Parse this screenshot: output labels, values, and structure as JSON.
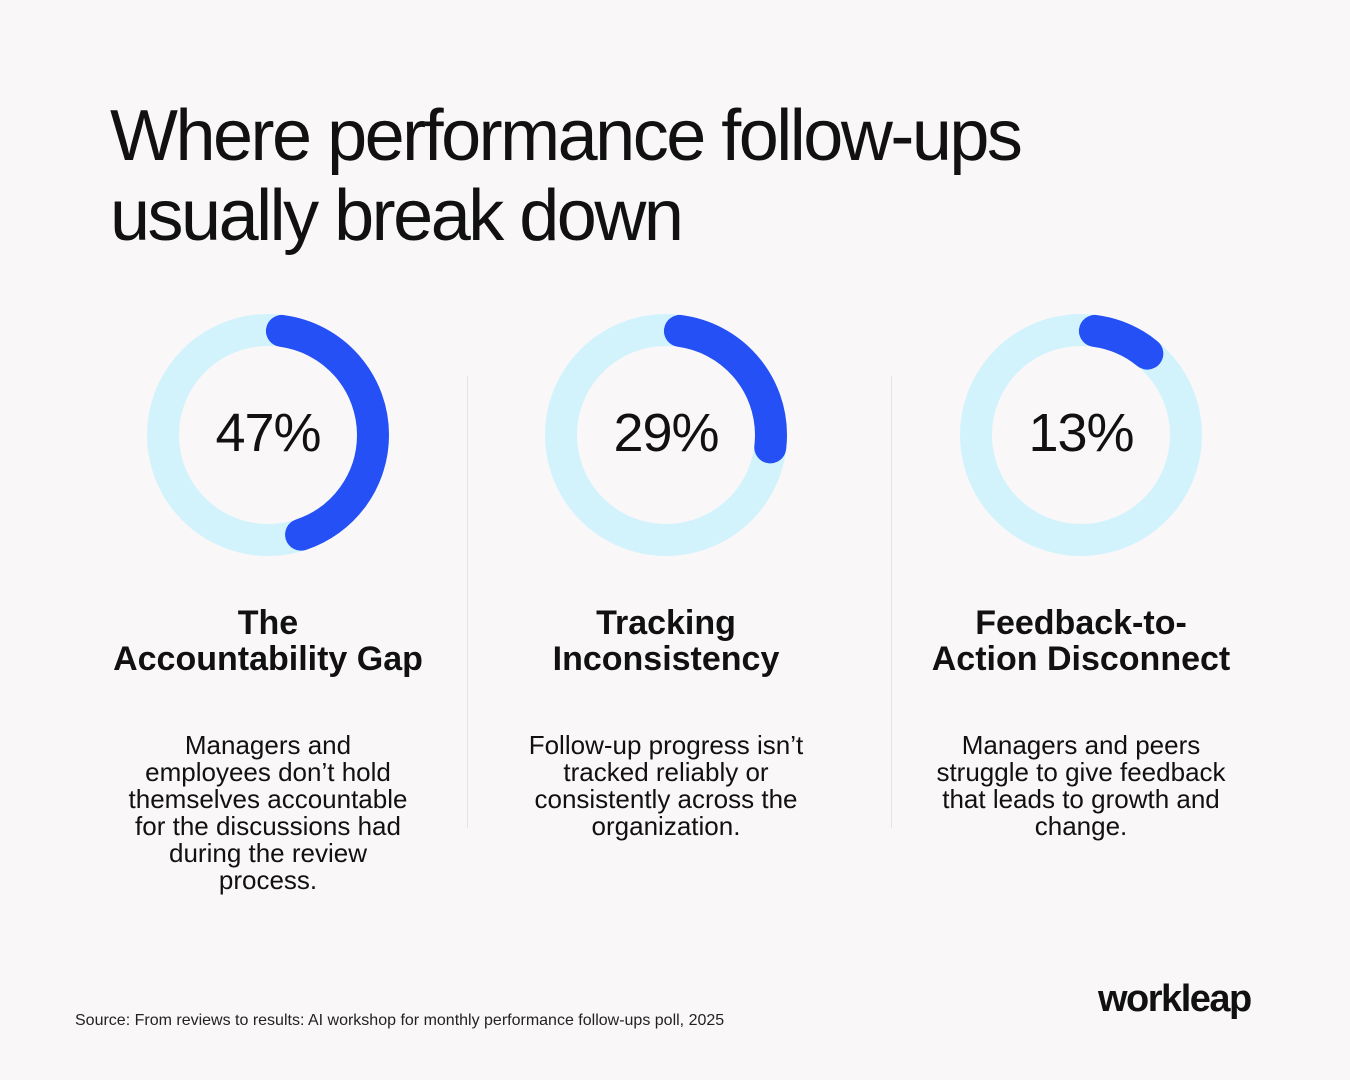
{
  "title_lines": [
    "Where performance follow-ups",
    "usually break down"
  ],
  "chart_data": {
    "type": "donut",
    "title": "Where performance follow-ups usually break down",
    "colors": {
      "track": "#d3f3fc",
      "value": "#2450f5"
    },
    "items": [
      {
        "value": 47,
        "label": "47%",
        "heading_lines": [
          "The",
          "Accountability Gap"
        ],
        "description": "Managers and employees don’t hold themselves accountable for the discussions had during the review process."
      },
      {
        "value": 29,
        "label": "29%",
        "heading_lines": [
          "Tracking",
          "Inconsistency"
        ],
        "description": "Follow-up progress isn’t tracked reliably or consistently across the organization."
      },
      {
        "value": 13,
        "label": "13%",
        "heading_lines": [
          "Feedback-to-",
          "Action Disconnect"
        ],
        "description": "Managers and peers struggle to give feedback that leads to growth and change."
      }
    ]
  },
  "source": "Source: From reviews to results: AI workshop for monthly performance follow-ups poll, 2025",
  "logo_text": "workleap"
}
